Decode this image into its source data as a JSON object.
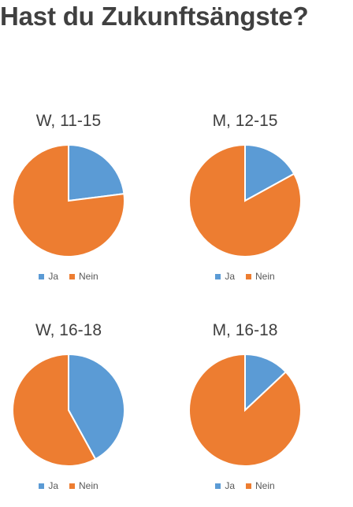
{
  "title": "Hast du Zukunftsängste?",
  "colors": {
    "ja": "#5b9bd5",
    "nein": "#ed7d31"
  },
  "legend_labels": [
    "Ja",
    "Nein"
  ],
  "chart_data": [
    {
      "type": "pie",
      "title": "W, 11-15",
      "categories": [
        "Ja",
        "Nein"
      ],
      "values": [
        23,
        77
      ],
      "legend_position": "bottom"
    },
    {
      "type": "pie",
      "title": "M, 12-15",
      "categories": [
        "Ja",
        "Nein"
      ],
      "values": [
        17,
        83
      ],
      "legend_position": "bottom"
    },
    {
      "type": "pie",
      "title": "W, 16-18",
      "categories": [
        "Ja",
        "Nein"
      ],
      "values": [
        42,
        58
      ],
      "legend_position": "bottom"
    },
    {
      "type": "pie",
      "title": "M, 16-18",
      "categories": [
        "Ja",
        "Nein"
      ],
      "values": [
        13,
        87
      ],
      "legend_position": "bottom"
    }
  ]
}
